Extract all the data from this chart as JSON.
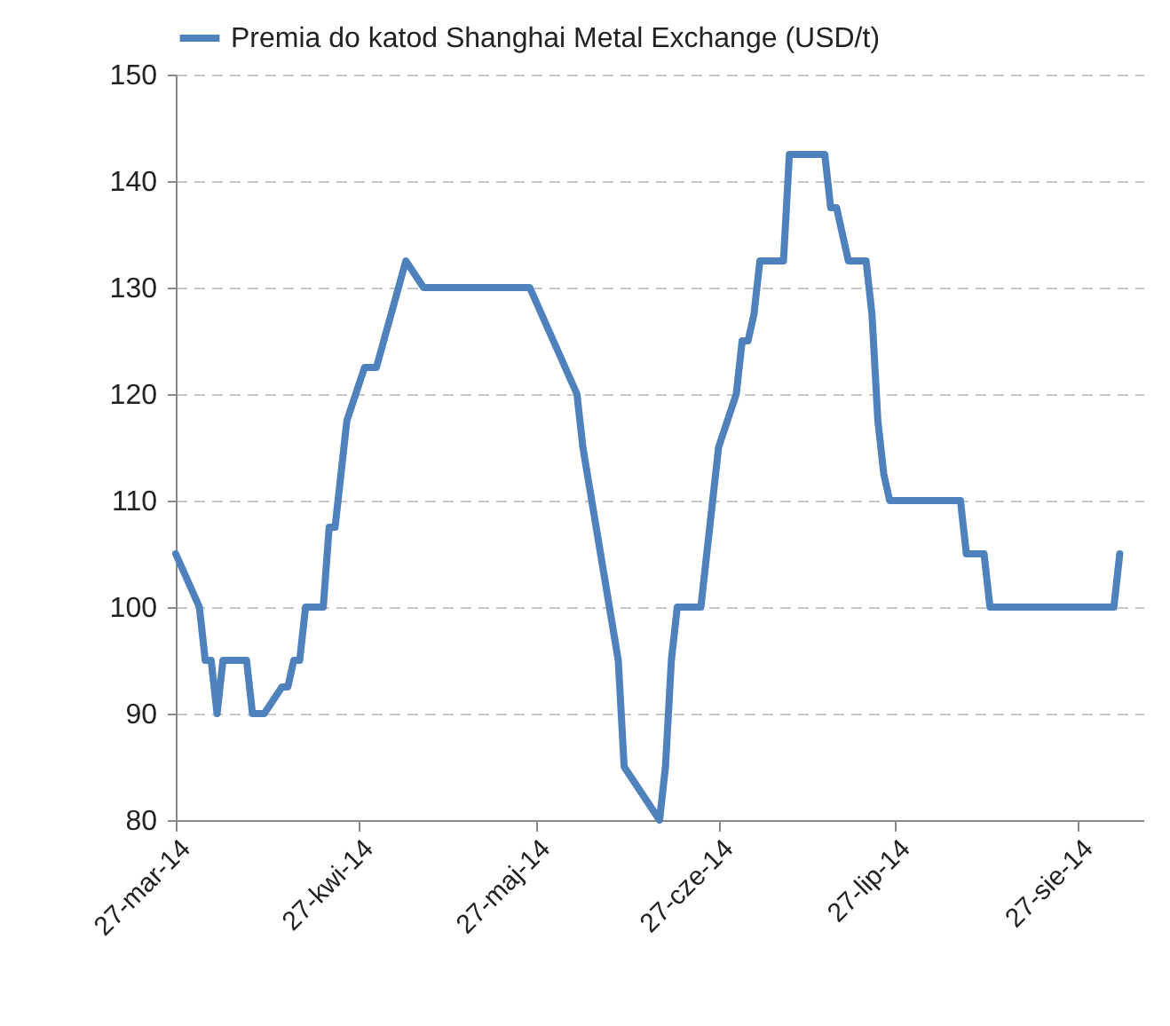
{
  "chart_data": {
    "type": "line",
    "x": [
      "2014-03-27",
      "2014-03-31",
      "2014-04-01",
      "2014-04-02",
      "2014-04-03",
      "2014-04-04",
      "2014-04-08",
      "2014-04-09",
      "2014-04-11",
      "2014-04-14",
      "2014-04-15",
      "2014-04-16",
      "2014-04-17",
      "2014-04-18",
      "2014-04-21",
      "2014-04-22",
      "2014-04-23",
      "2014-04-25",
      "2014-04-28",
      "2014-04-30",
      "2014-05-05",
      "2014-05-08",
      "2014-05-26",
      "2014-06-03",
      "2014-06-04",
      "2014-06-10",
      "2014-06-11",
      "2014-06-17",
      "2014-06-18",
      "2014-06-19",
      "2014-06-20",
      "2014-06-24",
      "2014-06-27",
      "2014-06-30",
      "2014-07-01",
      "2014-07-02",
      "2014-07-03",
      "2014-07-04",
      "2014-07-08",
      "2014-07-09",
      "2014-07-15",
      "2014-07-16",
      "2014-07-17",
      "2014-07-19",
      "2014-07-22",
      "2014-07-23",
      "2014-07-24",
      "2014-07-25",
      "2014-07-26",
      "2014-08-07",
      "2014-08-08",
      "2014-08-11",
      "2014-08-12",
      "2014-09-02",
      "2014-09-03"
    ],
    "series": [
      {
        "name": "Premia do katod Shanghai Metal Exchange (USD/t)",
        "color": "#4f81bd",
        "values": [
          105,
          100,
          95,
          95,
          90,
          95,
          95,
          90,
          90,
          92.5,
          92.5,
          95,
          95,
          100,
          100,
          107.5,
          107.5,
          117.5,
          122.5,
          122.5,
          132.5,
          130,
          130,
          120,
          115,
          95,
          85,
          80,
          85,
          95,
          100,
          100,
          115,
          120,
          125,
          125,
          127.5,
          132.5,
          132.5,
          142.5,
          142.5,
          137.5,
          137.5,
          132.5,
          132.5,
          127.5,
          117.5,
          112.5,
          110,
          110,
          105,
          105,
          100,
          100,
          105
        ]
      }
    ],
    "xlim": [
      "2014-03-27",
      "2014-09-07"
    ],
    "xticks": [
      {
        "value": "2014-03-27",
        "label": "27-mar-14"
      },
      {
        "value": "2014-04-27",
        "label": "27-kwi-14"
      },
      {
        "value": "2014-05-27",
        "label": "27-maj-14"
      },
      {
        "value": "2014-06-27",
        "label": "27-cze-14"
      },
      {
        "value": "2014-07-27",
        "label": "27-lip-14"
      },
      {
        "value": "2014-08-27",
        "label": "27-sie-14"
      }
    ],
    "ylim": [
      80,
      150
    ],
    "yticks": [
      80,
      90,
      100,
      110,
      120,
      130,
      140,
      150
    ],
    "grid": "y",
    "legend": "top",
    "marker": "none",
    "line_style": "solid"
  }
}
